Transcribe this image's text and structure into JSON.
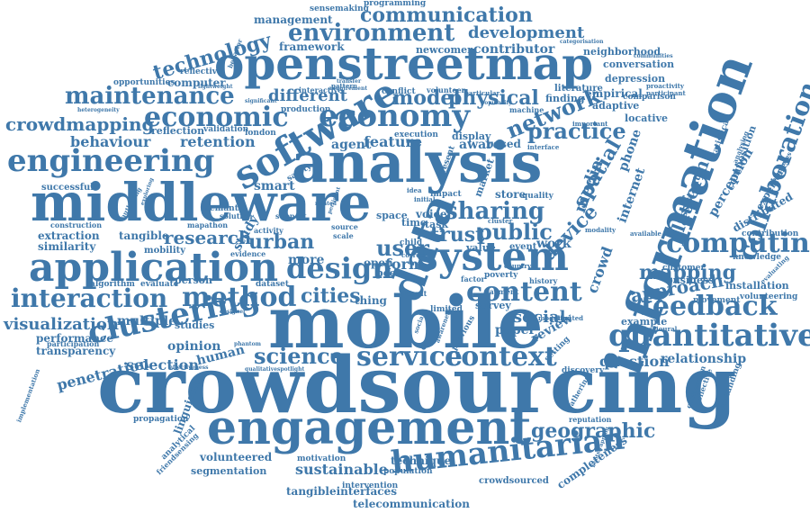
{
  "words": [
    {
      "id": "crowdsourcing",
      "text": "crowdsourcing"
    },
    {
      "id": "mobile",
      "text": "mobile"
    },
    {
      "id": "analysis",
      "text": "analysis"
    },
    {
      "id": "openstreetmap",
      "text": "openstreetmap"
    },
    {
      "id": "middleware",
      "text": "middleware"
    },
    {
      "id": "information",
      "text": "information"
    },
    {
      "id": "engagement",
      "text": "engagement"
    },
    {
      "id": "application",
      "text": "application"
    },
    {
      "id": "system",
      "text": "system"
    },
    {
      "id": "software",
      "text": "software"
    },
    {
      "id": "data",
      "text": "data"
    },
    {
      "id": "economy",
      "text": "economy"
    },
    {
      "id": "economic",
      "text": "economic"
    },
    {
      "id": "engineering",
      "text": "engineering"
    },
    {
      "id": "clustering",
      "text": "clustering"
    },
    {
      "id": "interaction",
      "text": "interaction"
    },
    {
      "id": "method",
      "text": "method"
    },
    {
      "id": "design",
      "text": "design"
    },
    {
      "id": "humanitarian",
      "text": "humanitarian"
    },
    {
      "id": "quantitative",
      "text": "quantitative"
    },
    {
      "id": "computing",
      "text": "computing"
    },
    {
      "id": "context",
      "text": "context"
    },
    {
      "id": "service",
      "text": "service"
    },
    {
      "id": "environment",
      "text": "environment"
    },
    {
      "id": "maintenance",
      "text": "maintenance"
    },
    {
      "id": "content",
      "text": "content"
    },
    {
      "id": "communication",
      "text": "communication"
    },
    {
      "id": "feedback",
      "text": "feedback"
    },
    {
      "id": "mapping",
      "text": "mapping"
    },
    {
      "id": "sharing",
      "text": "sharing"
    },
    {
      "id": "network",
      "text": "network"
    },
    {
      "id": "practice",
      "text": "practice"
    },
    {
      "id": "collaboration",
      "text": "collaboration"
    },
    {
      "id": "science",
      "text": "science"
    },
    {
      "id": "geographic",
      "text": "geographic"
    },
    {
      "id": "technology",
      "text": "technology"
    },
    {
      "id": "crowdmapping",
      "text": "crowdmapping"
    },
    {
      "id": "behaviour",
      "text": "behaviour"
    },
    {
      "id": "retention",
      "text": "retention"
    },
    {
      "id": "visualization",
      "text": "visualization"
    },
    {
      "id": "development",
      "text": "development"
    },
    {
      "id": "user",
      "text": "user"
    },
    {
      "id": "public",
      "text": "public"
    },
    {
      "id": "trust",
      "text": "trust"
    },
    {
      "id": "physical",
      "text": "physical"
    },
    {
      "id": "model",
      "text": "model"
    },
    {
      "id": "cities",
      "text": "cities"
    },
    {
      "id": "urban",
      "text": "urban"
    },
    {
      "id": "research",
      "text": "research"
    },
    {
      "id": "approach",
      "text": "approach"
    },
    {
      "id": "platform",
      "text": "platform"
    },
    {
      "id": "device",
      "text": "device"
    },
    {
      "id": "spatial",
      "text": "spatial"
    },
    {
      "id": "media",
      "text": "media"
    },
    {
      "id": "social",
      "text": "social"
    },
    {
      "id": "relationship",
      "text": "relationship"
    },
    {
      "id": "question",
      "text": "question"
    },
    {
      "id": "selection",
      "text": "selection"
    },
    {
      "id": "penetration",
      "text": "penetration"
    },
    {
      "id": "sustainable",
      "text": "sustainable"
    },
    {
      "id": "technique",
      "text": "technique"
    },
    {
      "id": "tangibleinterfaces",
      "text": "tangibleinterfaces"
    },
    {
      "id": "telecommunication",
      "text": "telecommunication"
    },
    {
      "id": "volunteered",
      "text": "volunteered"
    },
    {
      "id": "segmentation",
      "text": "segmentation"
    },
    {
      "id": "completeness",
      "text": "completeness"
    },
    {
      "id": "framework",
      "text": "framework"
    },
    {
      "id": "management",
      "text": "management"
    },
    {
      "id": "programming",
      "text": "programming"
    },
    {
      "id": "sensemaking",
      "text": "sensemaking"
    },
    {
      "id": "contributor",
      "text": "contributor"
    },
    {
      "id": "newcomer",
      "text": "newcomer"
    },
    {
      "id": "different",
      "text": "different"
    },
    {
      "id": "feature",
      "text": "feature"
    },
    {
      "id": "aware",
      "text": "aware"
    },
    {
      "id": "smart",
      "text": "smart"
    },
    {
      "id": "similarity",
      "text": "similarity"
    },
    {
      "id": "extraction",
      "text": "extraction"
    },
    {
      "id": "tangible",
      "text": "tangible"
    },
    {
      "id": "performance",
      "text": "performance"
    },
    {
      "id": "transparency",
      "text": "transparency"
    },
    {
      "id": "multiple",
      "text": "multiple"
    },
    {
      "id": "opinion",
      "text": "opinion"
    },
    {
      "id": "human",
      "text": "human"
    },
    {
      "id": "studies",
      "text": "studies"
    },
    {
      "id": "study",
      "text": "study"
    },
    {
      "id": "form",
      "text": "form"
    },
    {
      "id": "more",
      "text": "more"
    },
    {
      "id": "open",
      "text": "open"
    },
    {
      "id": "peer",
      "text": "peer"
    },
    {
      "id": "thing",
      "text": "thing"
    },
    {
      "id": "agent",
      "text": "agent"
    },
    {
      "id": "based",
      "text": "based"
    },
    {
      "id": "store",
      "text": "store"
    },
    {
      "id": "work",
      "text": "work"
    },
    {
      "id": "paper",
      "text": "paper"
    },
    {
      "id": "review",
      "text": "review"
    },
    {
      "id": "survey",
      "text": "survey"
    },
    {
      "id": "crowd",
      "text": "crowd"
    },
    {
      "id": "internet",
      "text": "internet"
    },
    {
      "id": "phone",
      "text": "phone"
    },
    {
      "id": "experience",
      "text": "experience"
    },
    {
      "id": "perception",
      "text": "perception"
    },
    {
      "id": "distributed",
      "text": "distributed"
    },
    {
      "id": "installation",
      "text": "installation"
    },
    {
      "id": "volunteering",
      "text": "volunteering"
    },
    {
      "id": "business",
      "text": "business"
    },
    {
      "id": "customer",
      "text": "customer"
    },
    {
      "id": "example",
      "text": "example"
    },
    {
      "id": "assistant",
      "text": "assistant"
    },
    {
      "id": "composition",
      "text": "composition"
    },
    {
      "id": "depression",
      "text": "depression"
    },
    {
      "id": "conversation",
      "text": "conversation"
    },
    {
      "id": "neighborhood",
      "text": "neighborhood"
    },
    {
      "id": "empirical",
      "text": "empirical"
    },
    {
      "id": "adaptive",
      "text": "adaptive"
    },
    {
      "id": "locative",
      "text": "locative"
    },
    {
      "id": "finding",
      "text": "finding"
    },
    {
      "id": "literature",
      "text": "literature"
    },
    {
      "id": "comparison",
      "text": "comparison"
    },
    {
      "id": "reflection",
      "text": "reflection"
    },
    {
      "id": "validation",
      "text": "validation"
    },
    {
      "id": "london",
      "text": "london"
    },
    {
      "id": "computer",
      "text": "computer"
    },
    {
      "id": "reflective",
      "text": "reflective"
    },
    {
      "id": "opportunities",
      "text": "opportunities"
    },
    {
      "id": "production",
      "text": "production"
    },
    {
      "id": "conflict",
      "text": "conflict"
    },
    {
      "id": "display",
      "text": "display"
    },
    {
      "id": "successful",
      "text": "successful"
    },
    {
      "id": "semantic",
      "text": "semantic"
    },
    {
      "id": "algorithm",
      "text": "algorithm"
    },
    {
      "id": "evaluate",
      "text": "evaluate"
    },
    {
      "id": "person",
      "text": "person"
    },
    {
      "id": "mobility",
      "text": "mobility"
    },
    {
      "id": "dataset",
      "text": "dataset"
    },
    {
      "id": "construction",
      "text": "construction"
    },
    {
      "id": "participation",
      "text": "participation"
    },
    {
      "id": "linguistic",
      "text": "linguistic"
    },
    {
      "id": "analytical",
      "text": "analytical"
    },
    {
      "id": "propagation",
      "text": "propagation"
    },
    {
      "id": "intervention",
      "text": "intervention"
    },
    {
      "id": "population",
      "text": "population"
    },
    {
      "id": "crowdsourced",
      "text": "crowdsourced"
    },
    {
      "id": "motivation",
      "text": "motivation"
    },
    {
      "id": "discovery",
      "text": "discovery"
    },
    {
      "id": "reputation",
      "text": "reputation"
    },
    {
      "id": "contribution",
      "text": "contribution"
    },
    {
      "id": "knowledge",
      "text": "knowledge"
    },
    {
      "id": "movement",
      "text": "movement"
    },
    {
      "id": "understanding",
      "text": "understanding"
    },
    {
      "id": "statistical",
      "text": "statistical"
    },
    {
      "id": "voice",
      "text": "voice"
    },
    {
      "id": "space",
      "text": "space"
    },
    {
      "id": "time",
      "text": "time"
    },
    {
      "id": "task",
      "text": "task"
    },
    {
      "id": "market",
      "text": "market"
    },
    {
      "id": "impact",
      "text": "impact"
    },
    {
      "id": "quality",
      "text": "quality"
    },
    {
      "id": "poverty",
      "text": "poverty"
    },
    {
      "id": "limited",
      "text": "limited"
    },
    {
      "id": "payment",
      "text": "payment"
    },
    {
      "id": "history",
      "text": "history"
    },
    {
      "id": "factor",
      "text": "factor"
    },
    {
      "id": "value",
      "text": "value"
    },
    {
      "id": "event",
      "text": "event"
    },
    {
      "id": "child",
      "text": "child"
    },
    {
      "id": "result",
      "text": "result"
    },
    {
      "id": "execution",
      "text": "execution"
    },
    {
      "id": "present",
      "text": "present"
    },
    {
      "id": "safety",
      "text": "safety"
    },
    {
      "id": "solution",
      "text": "solution"
    },
    {
      "id": "activity",
      "text": "activity"
    },
    {
      "id": "evidence",
      "text": "evidence"
    },
    {
      "id": "previous",
      "text": "previous"
    },
    {
      "id": "particular",
      "text": "particular"
    },
    {
      "id": "interactive",
      "text": "interactive"
    },
    {
      "id": "volunteer",
      "text": "volunteer"
    },
    {
      "id": "interface",
      "text": "interface"
    },
    {
      "id": "machine",
      "text": "machine"
    },
    {
      "id": "proactivity",
      "text": "proactivity"
    },
    {
      "id": "participant",
      "text": "participant"
    },
    {
      "id": "important",
      "text": "important"
    },
    {
      "id": "implementation",
      "text": "implementation"
    },
    {
      "id": "friendsensing",
      "text": "friendsensing"
    },
    {
      "id": "setting",
      "text": "setting"
    },
    {
      "id": "effectiveness",
      "text": "effectiveness"
    },
    {
      "id": "mapathon",
      "text": "mapathon"
    },
    {
      "id": "connection",
      "text": "connection"
    },
    {
      "id": "collective",
      "text": "collective"
    },
    {
      "id": "gathering",
      "text": "gathering"
    },
    {
      "id": "situated",
      "text": "situated"
    },
    {
      "id": "modeling",
      "text": "modeling"
    },
    {
      "id": "modality",
      "text": "modality"
    },
    {
      "id": "available",
      "text": "available"
    },
    {
      "id": "cluster",
      "text": "cluster"
    },
    {
      "id": "country",
      "text": "country"
    },
    {
      "id": "scale",
      "text": "scale"
    },
    {
      "id": "source",
      "text": "source"
    },
    {
      "id": "support",
      "text": "support"
    },
    {
      "id": "authoring",
      "text": "authoring"
    },
    {
      "id": "heterogeneity",
      "text": "heterogeneity"
    },
    {
      "id": "behavior",
      "text": "behavior"
    },
    {
      "id": "lightweight",
      "text": "lightweight"
    },
    {
      "id": "categorisation",
      "text": "categorisation"
    },
    {
      "id": "companies",
      "text": "companies"
    },
    {
      "id": "analysing",
      "text": "analysing"
    },
    {
      "id": "behavioural",
      "text": "behavioural"
    },
    {
      "id": "evaluating",
      "text": "evaluating"
    },
    {
      "id": "bootstrapping",
      "text": "bootstrapping"
    },
    {
      "id": "communities",
      "text": "communities"
    },
    {
      "id": "pattern",
      "text": "pattern"
    },
    {
      "id": "transfer",
      "text": "transfer"
    },
    {
      "id": "requirement",
      "text": "requirement"
    },
    {
      "id": "significant",
      "text": "significant"
    },
    {
      "id": "popularity",
      "text": "popularity"
    },
    {
      "id": "correct",
      "text": "correct"
    },
    {
      "id": "exploring",
      "text": "exploring"
    },
    {
      "id": "designer",
      "text": "designer"
    },
    {
      "id": "qualitative",
      "text": "qualitative"
    },
    {
      "id": "spotlight",
      "text": "spotlight"
    },
    {
      "id": "phantom",
      "text": "phantom"
    },
    {
      "id": "awareness",
      "text": "awareness"
    },
    {
      "id": "pertinent",
      "text": "pertinent"
    },
    {
      "id": "social2",
      "text": "social"
    },
    {
      "id": "idea",
      "text": "idea"
    },
    {
      "id": "initial",
      "text": "initial"
    },
    {
      "id": "related",
      "text": "related"
    }
  ]
}
